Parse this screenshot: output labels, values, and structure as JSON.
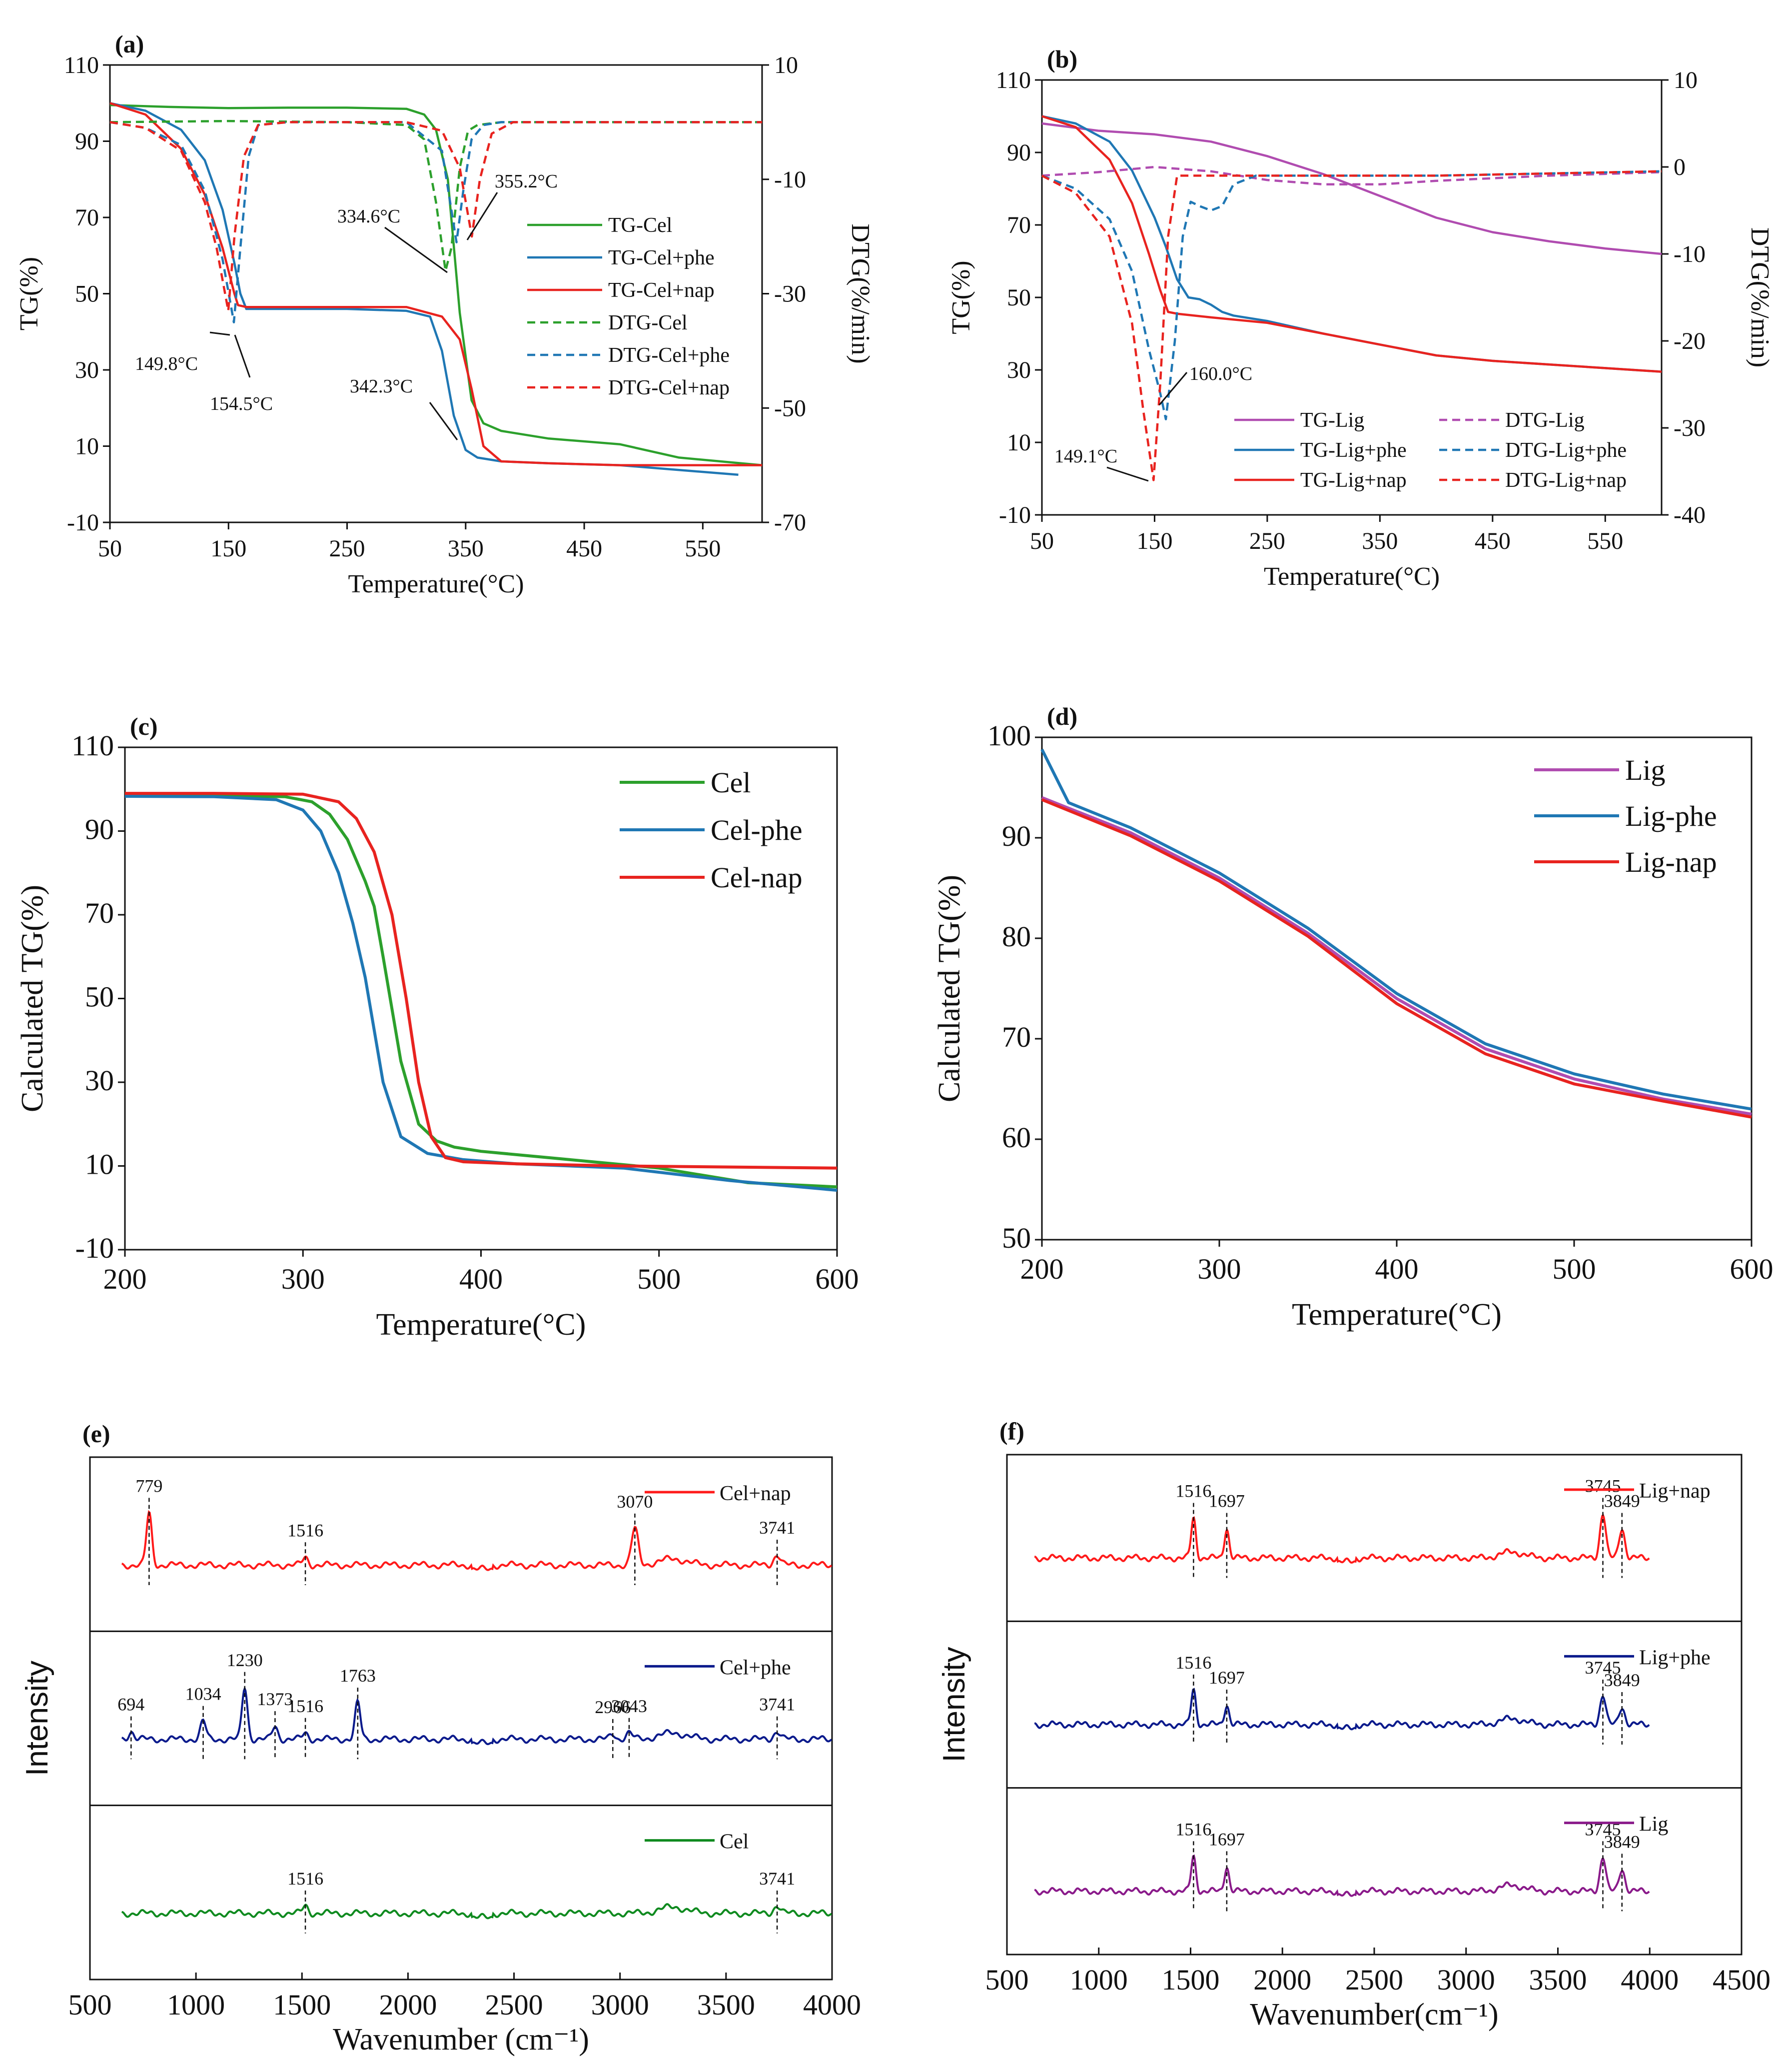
{
  "colors": {
    "green": "#2ca02c",
    "blue": "#1f77b4",
    "red": "#e8231f",
    "purple": "#b04cb0",
    "navy": "#0a1a8c",
    "darkgreen": "#0f8a1f",
    "magenta": "#8a1a8a",
    "redft": "#ff1a1a"
  },
  "chart_data": [
    {
      "panel": "(a)",
      "type": "line",
      "xlabel": "Temperature(°C)",
      "ylabel": "TG(%)",
      "y2label": "DTG(%/min)",
      "xlim": [
        50,
        600
      ],
      "ylim": [
        -10,
        110
      ],
      "y2lim": [
        -70,
        10
      ],
      "xticks": [
        50,
        150,
        250,
        350,
        450,
        550
      ],
      "yticks": [
        -10,
        10,
        30,
        50,
        70,
        90,
        110
      ],
      "y2ticks": [
        -70,
        -50,
        -30,
        -10,
        10
      ],
      "series": [
        {
          "name": "TG-Cel",
          "axis": "y",
          "color": "green",
          "dash": false,
          "x": [
            50,
            100,
            150,
            200,
            250,
            300,
            315,
            325,
            335,
            345,
            355,
            365,
            380,
            420,
            480,
            530,
            600
          ],
          "y": [
            99.5,
            99,
            98.7,
            98.8,
            98.8,
            98.5,
            97,
            93,
            80,
            45,
            22,
            16,
            14,
            12,
            10.5,
            7,
            5
          ]
        },
        {
          "name": "TG-Cel+phe",
          "axis": "y",
          "color": "blue",
          "dash": false,
          "x": [
            50,
            80,
            110,
            130,
            145,
            155,
            160,
            165,
            200,
            250,
            300,
            320,
            330,
            340,
            350,
            360,
            380,
            420,
            480,
            540,
            580
          ],
          "y": [
            100,
            98,
            93,
            85,
            72,
            58,
            50,
            46,
            46,
            46,
            45.5,
            44,
            35,
            18,
            9,
            7,
            6,
            5.5,
            5,
            3.5,
            2.5
          ]
        },
        {
          "name": "TG-Cel+nap",
          "axis": "y",
          "color": "red",
          "dash": false,
          "x": [
            50,
            80,
            110,
            130,
            145,
            150,
            155,
            158,
            165,
            200,
            250,
            300,
            330,
            345,
            355,
            365,
            380,
            420,
            480,
            540,
            600
          ],
          "y": [
            100,
            97,
            88,
            76,
            62,
            56,
            50,
            47,
            46.5,
            46.5,
            46.5,
            46.5,
            44,
            38,
            25,
            10,
            6,
            5.5,
            5,
            5,
            5
          ]
        },
        {
          "name": "DTG-Cel",
          "axis": "y2",
          "color": "green",
          "dash": true,
          "x": [
            50,
            150,
            250,
            300,
            315,
            325,
            333,
            338,
            345,
            352,
            360,
            380,
            450,
            600
          ],
          "y": [
            0,
            0.2,
            0,
            -0.5,
            -3,
            -14,
            -26,
            -22,
            -8,
            -1.5,
            -0.5,
            0,
            0,
            0
          ]
        },
        {
          "name": "DTG-Cel+phe",
          "axis": "y2",
          "color": "blue",
          "dash": true,
          "x": [
            50,
            80,
            110,
            130,
            145,
            154.5,
            160,
            167,
            175,
            200,
            300,
            330,
            342.3,
            348,
            355,
            365,
            380,
            450,
            600
          ],
          "y": [
            0,
            -1,
            -4,
            -12,
            -24,
            -35,
            -22,
            -6,
            -0.5,
            0,
            0,
            -5,
            -21,
            -12,
            -3,
            -0.5,
            0,
            0,
            0
          ]
        },
        {
          "name": "DTG-Cel+nap",
          "axis": "y2",
          "color": "red",
          "dash": true,
          "x": [
            50,
            80,
            110,
            130,
            140,
            149.8,
            155,
            163,
            175,
            200,
            300,
            330,
            345,
            355.2,
            362,
            372,
            390,
            600
          ],
          "y": [
            0,
            -1,
            -5,
            -14,
            -22,
            -33,
            -20,
            -6,
            -0.5,
            0,
            0,
            -1.5,
            -8,
            -20,
            -10,
            -2,
            0,
            0
          ]
        }
      ],
      "annotations": [
        "334.6°C",
        "355.2°C",
        "149.8°C",
        "154.5°C",
        "342.3°C"
      ]
    },
    {
      "panel": "(b)",
      "type": "line",
      "xlabel": "Temperature(°C)",
      "ylabel": "TG(%)",
      "y2label": "DTG(%/min)",
      "xlim": [
        50,
        600
      ],
      "ylim": [
        -10,
        110
      ],
      "y2lim": [
        -40,
        10
      ],
      "xticks": [
        50,
        150,
        250,
        350,
        450,
        550
      ],
      "yticks": [
        -10,
        10,
        30,
        50,
        70,
        90,
        110
      ],
      "y2ticks": [
        -40,
        -30,
        -20,
        -10,
        0,
        10
      ],
      "series": [
        {
          "name": "TG-Lig",
          "axis": "y",
          "color": "purple",
          "dash": false,
          "x": [
            50,
            100,
            150,
            200,
            250,
            300,
            350,
            400,
            450,
            500,
            550,
            600
          ],
          "y": [
            98,
            96,
            95,
            93,
            89,
            84,
            78,
            72,
            68,
            65.5,
            63.5,
            62
          ]
        },
        {
          "name": "TG-Lig+phe",
          "axis": "y",
          "color": "blue",
          "dash": false,
          "x": [
            50,
            80,
            110,
            130,
            150,
            160,
            170,
            180,
            190,
            200,
            210,
            220,
            250,
            300,
            350,
            400,
            450,
            500,
            550,
            600
          ],
          "y": [
            100,
            98,
            93,
            85,
            72,
            64,
            55,
            50,
            49.5,
            48,
            46,
            45,
            43.5,
            40,
            37,
            34,
            32.5,
            31.5,
            30.5,
            29.5
          ]
        },
        {
          "name": "TG-Lig+nap",
          "axis": "y",
          "color": "red",
          "dash": false,
          "x": [
            50,
            80,
            110,
            130,
            145,
            155,
            162,
            170,
            200,
            250,
            300,
            350,
            400,
            450,
            500,
            550,
            600
          ],
          "y": [
            100,
            97,
            88,
            76,
            62,
            52,
            46,
            45.5,
            44.5,
            43,
            40,
            37,
            34,
            32.5,
            31.5,
            30.5,
            29.5
          ]
        },
        {
          "name": "DTG-Lig",
          "axis": "y2",
          "color": "purple",
          "dash": true,
          "x": [
            50,
            100,
            150,
            200,
            250,
            300,
            350,
            400,
            450,
            500,
            550,
            600
          ],
          "y": [
            -1,
            -0.6,
            0,
            -0.5,
            -1.5,
            -2,
            -2,
            -1.6,
            -1.3,
            -1,
            -0.8,
            -0.6
          ]
        },
        {
          "name": "DTG-Lig+phe",
          "axis": "y2",
          "color": "blue",
          "dash": true,
          "x": [
            50,
            80,
            110,
            130,
            145,
            155,
            160,
            168,
            175,
            182,
            190,
            200,
            210,
            220,
            240,
            300,
            400,
            600
          ],
          "y": [
            -1,
            -2.5,
            -6,
            -12,
            -21,
            -26,
            -29,
            -20,
            -8,
            -4,
            -4.5,
            -5,
            -4.5,
            -2,
            -1,
            -1,
            -1,
            -0.5
          ]
        },
        {
          "name": "DTG-Lig+nap",
          "axis": "y2",
          "color": "red",
          "dash": true,
          "x": [
            50,
            80,
            110,
            130,
            140,
            149.1,
            155,
            162,
            170,
            185,
            250,
            400,
            600
          ],
          "y": [
            -1,
            -3,
            -8,
            -18,
            -28,
            -36,
            -25,
            -8,
            -1,
            -1,
            -1,
            -1,
            -0.5
          ]
        }
      ],
      "annotations": [
        "160.0°C",
        "149.1°C"
      ]
    },
    {
      "panel": "(c)",
      "type": "line",
      "xlabel": "Temperature(°C)",
      "ylabel": "Calculated TG(%)",
      "xlim": [
        200,
        600
      ],
      "ylim": [
        -10,
        110
      ],
      "xticks": [
        200,
        300,
        400,
        500,
        600
      ],
      "yticks": [
        -10,
        10,
        30,
        50,
        70,
        90,
        110
      ],
      "series": [
        {
          "name": "Cel",
          "color": "green",
          "x": [
            200,
            250,
            290,
            305,
            315,
            325,
            335,
            340,
            345,
            355,
            365,
            375,
            385,
            400,
            450,
            500,
            550,
            600
          ],
          "y": [
            98.5,
            98.5,
            98.2,
            97,
            94,
            88,
            78,
            72,
            60,
            35,
            20,
            16,
            14.5,
            13.5,
            11.5,
            9.5,
            6,
            5
          ]
        },
        {
          "name": "Cel-phe",
          "color": "blue",
          "x": [
            200,
            250,
            285,
            300,
            310,
            320,
            328,
            335,
            345,
            355,
            370,
            390,
            420,
            480,
            540,
            600
          ],
          "y": [
            98.3,
            98.2,
            97.5,
            95,
            90,
            80,
            68,
            55,
            30,
            17,
            13,
            11.5,
            10.5,
            9.5,
            6.5,
            4.2
          ]
        },
        {
          "name": "Cel-nap",
          "color": "red",
          "x": [
            200,
            250,
            300,
            320,
            330,
            340,
            350,
            358,
            365,
            372,
            380,
            390,
            420,
            480,
            600
          ],
          "y": [
            99,
            99,
            98.8,
            97,
            93,
            85,
            70,
            50,
            30,
            17,
            12,
            11,
            10.5,
            10,
            9.5
          ]
        }
      ]
    },
    {
      "panel": "(d)",
      "type": "line",
      "xlabel": "Temperature(°C)",
      "ylabel": "Calculated TG(%)",
      "xlim": [
        200,
        600
      ],
      "ylim": [
        50,
        100
      ],
      "xticks": [
        200,
        300,
        400,
        500,
        600
      ],
      "yticks": [
        50,
        60,
        70,
        80,
        90,
        100
      ],
      "series": [
        {
          "name": "Lig",
          "color": "purple",
          "x": [
            200,
            250,
            300,
            350,
            400,
            450,
            500,
            550,
            600
          ],
          "y": [
            94,
            90.5,
            86,
            80.5,
            74,
            69,
            66,
            64,
            62.5
          ]
        },
        {
          "name": "Lig-phe",
          "color": "blue",
          "x": [
            200,
            215,
            250,
            300,
            350,
            400,
            450,
            500,
            550,
            600
          ],
          "y": [
            98.8,
            93.5,
            91,
            86.5,
            81,
            74.5,
            69.5,
            66.5,
            64.5,
            63
          ]
        },
        {
          "name": "Lig-nap",
          "color": "red",
          "x": [
            200,
            250,
            300,
            350,
            400,
            450,
            500,
            550,
            600
          ],
          "y": [
            93.8,
            90.2,
            85.7,
            80.2,
            73.5,
            68.5,
            65.5,
            63.8,
            62.2
          ]
        }
      ]
    },
    {
      "panel": "(e)",
      "type": "line",
      "xlabel": "Wavenumber (cm⁻¹)",
      "ylabel": "Intensity",
      "xlim": [
        500,
        4000
      ],
      "xticks": [
        500,
        1000,
        1500,
        2000,
        2500,
        3000,
        3500,
        4000
      ],
      "stacks": [
        {
          "name": "Cel+nap",
          "color": "redft",
          "peaks": [
            [
              779,
              1.0
            ],
            [
              1516,
              0.15
            ],
            [
              3070,
              0.7
            ],
            [
              3741,
              0.2
            ]
          ],
          "labels": [
            "779",
            "1516",
            "3070",
            "3741"
          ]
        },
        {
          "name": "Cel+phe",
          "color": "navy",
          "peaks": [
            [
              694,
              0.15
            ],
            [
              1034,
              0.35
            ],
            [
              1230,
              1.0
            ],
            [
              1373,
              0.25
            ],
            [
              1516,
              0.12
            ],
            [
              1763,
              0.7
            ],
            [
              2966,
              0.1
            ],
            [
              3043,
              0.12
            ],
            [
              3741,
              0.15
            ]
          ],
          "labels": [
            "694",
            "1034",
            "1230",
            "1373",
            "1516",
            "1763",
            "2966",
            "3043",
            "3741"
          ]
        },
        {
          "name": "Cel",
          "color": "darkgreen",
          "peaks": [
            [
              1516,
              0.15
            ],
            [
              3741,
              0.15
            ]
          ],
          "labels": [
            "1516",
            "3741"
          ]
        }
      ]
    },
    {
      "panel": "(f)",
      "type": "line",
      "xlabel": "Wavenumber(cm⁻¹)",
      "ylabel": "Intensity",
      "xlim": [
        500,
        4500
      ],
      "xticks": [
        500,
        1000,
        1500,
        2000,
        2500,
        3000,
        3500,
        4000,
        4500
      ],
      "stacks": [
        {
          "name": "Lig+nap",
          "color": "redft",
          "peaks": [
            [
              1516,
              0.8
            ],
            [
              1697,
              0.6
            ],
            [
              3745,
              0.9
            ],
            [
              3849,
              0.6
            ]
          ],
          "labels": [
            "1516",
            "1697",
            "3745",
            "3849"
          ]
        },
        {
          "name": "Lig+phe",
          "color": "navy",
          "peaks": [
            [
              1516,
              0.7
            ],
            [
              1697,
              0.4
            ],
            [
              3745,
              0.6
            ],
            [
              3849,
              0.35
            ]
          ],
          "labels": [
            "1516",
            "1697",
            "3745",
            "3849"
          ]
        },
        {
          "name": "Lig",
          "color": "magenta",
          "peaks": [
            [
              1516,
              0.7
            ],
            [
              1697,
              0.5
            ],
            [
              3745,
              0.7
            ],
            [
              3849,
              0.45
            ]
          ],
          "labels": [
            "1516",
            "1697",
            "3745",
            "3849"
          ]
        }
      ]
    }
  ]
}
